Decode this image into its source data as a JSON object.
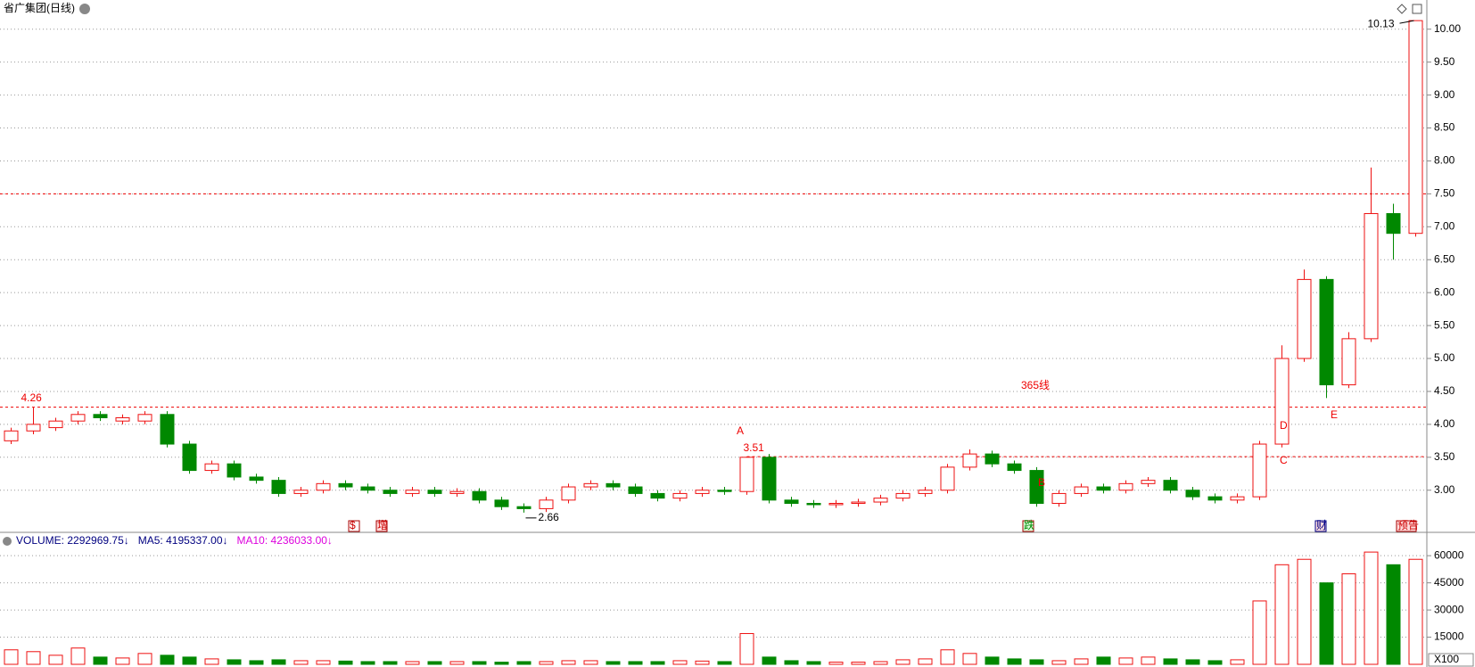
{
  "chart_data": {
    "type": "candlestick",
    "title": "省广集团(日线)",
    "open": [
      3.75,
      3.9,
      3.95,
      4.05,
      4.15,
      4.05,
      4.05,
      4.15,
      3.7,
      3.3,
      3.4,
      3.2,
      3.15,
      2.95,
      3.0,
      3.1,
      3.05,
      3.0,
      2.95,
      3.0,
      2.95,
      2.98,
      2.85,
      2.75,
      2.72,
      2.85,
      3.05,
      3.1,
      3.05,
      2.95,
      2.88,
      2.95,
      3.0,
      2.98,
      3.5,
      2.85,
      2.8,
      2.78,
      2.8,
      2.82,
      2.88,
      2.95,
      3.0,
      3.35,
      3.55,
      3.4,
      3.3,
      2.8,
      2.95,
      3.05,
      3.0,
      3.1,
      3.15,
      3.0,
      2.9,
      2.85,
      2.9,
      3.7,
      5.0,
      6.2,
      4.6,
      5.3,
      7.2,
      6.9
    ],
    "close": [
      3.9,
      4.0,
      4.05,
      4.15,
      4.1,
      4.1,
      4.15,
      3.7,
      3.3,
      3.4,
      3.2,
      3.15,
      2.95,
      3.0,
      3.1,
      3.05,
      3.0,
      2.95,
      3.0,
      2.95,
      2.98,
      2.85,
      2.75,
      2.72,
      2.85,
      3.05,
      3.1,
      3.05,
      2.95,
      2.88,
      2.95,
      3.0,
      2.98,
      3.5,
      2.85,
      2.8,
      2.78,
      2.8,
      2.82,
      2.88,
      2.95,
      3.0,
      3.35,
      3.55,
      3.4,
      3.3,
      2.8,
      2.95,
      3.05,
      3.0,
      3.1,
      3.15,
      3.0,
      2.9,
      2.85,
      2.9,
      3.7,
      5.0,
      6.2,
      4.6,
      5.3,
      7.2,
      6.9,
      10.13
    ],
    "high": [
      3.95,
      4.26,
      4.1,
      4.2,
      4.2,
      4.15,
      4.2,
      4.2,
      3.75,
      3.45,
      3.45,
      3.25,
      3.2,
      3.05,
      3.15,
      3.15,
      3.1,
      3.05,
      3.05,
      3.05,
      3.03,
      3.03,
      2.9,
      2.8,
      2.9,
      3.1,
      3.15,
      3.15,
      3.1,
      3.0,
      3.0,
      3.05,
      3.05,
      3.51,
      3.55,
      2.9,
      2.85,
      2.85,
      2.87,
      2.93,
      3.0,
      3.05,
      3.4,
      3.62,
      3.6,
      3.45,
      3.35,
      3.0,
      3.1,
      3.1,
      3.15,
      3.2,
      3.2,
      3.05,
      2.95,
      2.95,
      3.75,
      5.2,
      6.35,
      6.25,
      5.4,
      7.9,
      7.35,
      10.13
    ],
    "low": [
      3.7,
      3.85,
      3.9,
      4.0,
      4.05,
      4.0,
      4.0,
      3.65,
      3.25,
      3.25,
      3.15,
      3.1,
      2.9,
      2.9,
      2.95,
      3.0,
      2.95,
      2.9,
      2.9,
      2.9,
      2.9,
      2.8,
      2.7,
      2.66,
      2.67,
      2.8,
      3.0,
      3.0,
      2.9,
      2.83,
      2.83,
      2.9,
      2.93,
      2.93,
      2.8,
      2.75,
      2.73,
      2.73,
      2.75,
      2.77,
      2.83,
      2.9,
      2.95,
      3.3,
      3.35,
      3.25,
      2.75,
      2.75,
      2.9,
      2.95,
      2.95,
      3.05,
      2.95,
      2.85,
      2.8,
      2.8,
      2.85,
      3.65,
      4.95,
      4.4,
      4.55,
      5.25,
      6.5,
      6.85
    ],
    "volume": [
      8000,
      7000,
      5000,
      9000,
      4000,
      3500,
      6000,
      5000,
      4000,
      3000,
      2500,
      2000,
      2500,
      2000,
      2000,
      1800,
      1500,
      1500,
      1500,
      1500,
      1500,
      1500,
      1200,
      1500,
      1500,
      2000,
      2000,
      1500,
      1500,
      1500,
      2000,
      1800,
      1500,
      17000,
      4000,
      2000,
      1500,
      1200,
      1200,
      1500,
      2500,
      3000,
      8000,
      6000,
      4000,
      3000,
      2500,
      2000,
      3000,
      4000,
      3500,
      4000,
      3000,
      2500,
      2000,
      2500,
      35000,
      55000,
      58000,
      45000,
      50000,
      62000,
      55000,
      58000
    ],
    "up_color": "#ee1111",
    "down_color": "#008800",
    "ylim": [
      2.36,
      10.24
    ],
    "yticks": [
      {
        "value": 3,
        "label": "3.00"
      },
      {
        "value": 3.5,
        "label": "3.50"
      },
      {
        "value": 4,
        "label": "4.00"
      },
      {
        "value": 4.5,
        "label": "4.50"
      },
      {
        "value": 5,
        "label": "5.00"
      },
      {
        "value": 5.5,
        "label": "5.50"
      },
      {
        "value": 6,
        "label": "6.00"
      },
      {
        "value": 6.5,
        "label": "6.50"
      },
      {
        "value": 7,
        "label": "7.00"
      },
      {
        "value": 7.5,
        "label": "7.50"
      },
      {
        "value": 8,
        "label": "8.00"
      },
      {
        "value": 8.5,
        "label": "8.50"
      },
      {
        "value": 9,
        "label": "9.00"
      },
      {
        "value": 9.5,
        "label": "9.50"
      },
      {
        "value": 10,
        "label": "10.00"
      }
    ],
    "reference_lines": [
      7.5
    ],
    "grid": true,
    "annotations": [
      "A",
      "B",
      "C",
      "D",
      "E",
      "365线"
    ],
    "events": [
      "$",
      "增",
      "跌",
      "财",
      "预告"
    ],
    "indicators": [
      {
        "label": "VOLUME: 2292969.75↓",
        "color": "#000080"
      },
      {
        "label": "MA5: 4195337.00↓",
        "color": "#000080"
      },
      {
        "label": "MA10: 4236033.00↓",
        "color": "#dd00dd"
      }
    ],
    "volume_ylim": [
      0,
      65500
    ],
    "volume_yticks": [
      15000,
      30000,
      45000,
      60000
    ],
    "volume_unit": "X100"
  }
}
